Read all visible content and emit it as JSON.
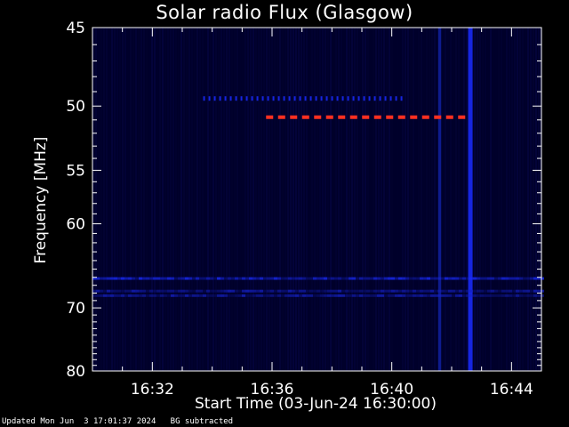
{
  "footer": {
    "updated": "Updated Mon Jun  3 17:01:37 2024",
    "mode": "BG subtracted"
  },
  "chart_data": {
    "type": "heatmap",
    "title": "Solar radio Flux (Glasgow)",
    "xlabel": "Start Time (03-Jun-24 16:30:00)",
    "ylabel": "Frequency [MHz]",
    "x_range_minutes_after_1630": [
      0,
      15
    ],
    "y_range_mhz": [
      45,
      80
    ],
    "y_scale": "reciprocal",
    "x_ticks": [
      {
        "minute": 2,
        "label": "16:32"
      },
      {
        "minute": 6,
        "label": "16:36"
      },
      {
        "minute": 10,
        "label": "16:40"
      },
      {
        "minute": 14,
        "label": "16:44"
      }
    ],
    "y_ticks": [
      {
        "mhz": 45,
        "label": "45"
      },
      {
        "mhz": 50,
        "label": "50"
      },
      {
        "mhz": 55,
        "label": "55"
      },
      {
        "mhz": 60,
        "label": "60"
      },
      {
        "mhz": 70,
        "label": "70"
      },
      {
        "mhz": 80,
        "label": "80"
      }
    ],
    "background_color": "#00002a",
    "features": [
      {
        "kind": "vertical-burst",
        "minute_start": 12.55,
        "minute_end": 12.7,
        "color": "#1a2cff"
      },
      {
        "kind": "vertical-burst",
        "minute_start": 11.55,
        "minute_end": 11.65,
        "color": "#1020a0"
      },
      {
        "kind": "horizontal-band",
        "mhz": 50.8,
        "minute_start": 5.8,
        "minute_end": 12.5,
        "color": "#ff3020"
      },
      {
        "kind": "horizontal-band",
        "mhz": 49.5,
        "minute_start": 3.7,
        "minute_end": 10.3,
        "color": "#1a2cff"
      },
      {
        "kind": "horizontal-band",
        "mhz": 66.2,
        "minute_start": 0,
        "minute_end": 15,
        "color": "#1a2cff"
      },
      {
        "kind": "horizontal-band",
        "mhz": 67.8,
        "minute_start": 0,
        "minute_end": 15,
        "color": "#1420c0"
      },
      {
        "kind": "horizontal-band",
        "mhz": 68.4,
        "minute_start": 0,
        "minute_end": 15,
        "color": "#1420c0"
      }
    ],
    "grid": false,
    "legend": "none"
  }
}
